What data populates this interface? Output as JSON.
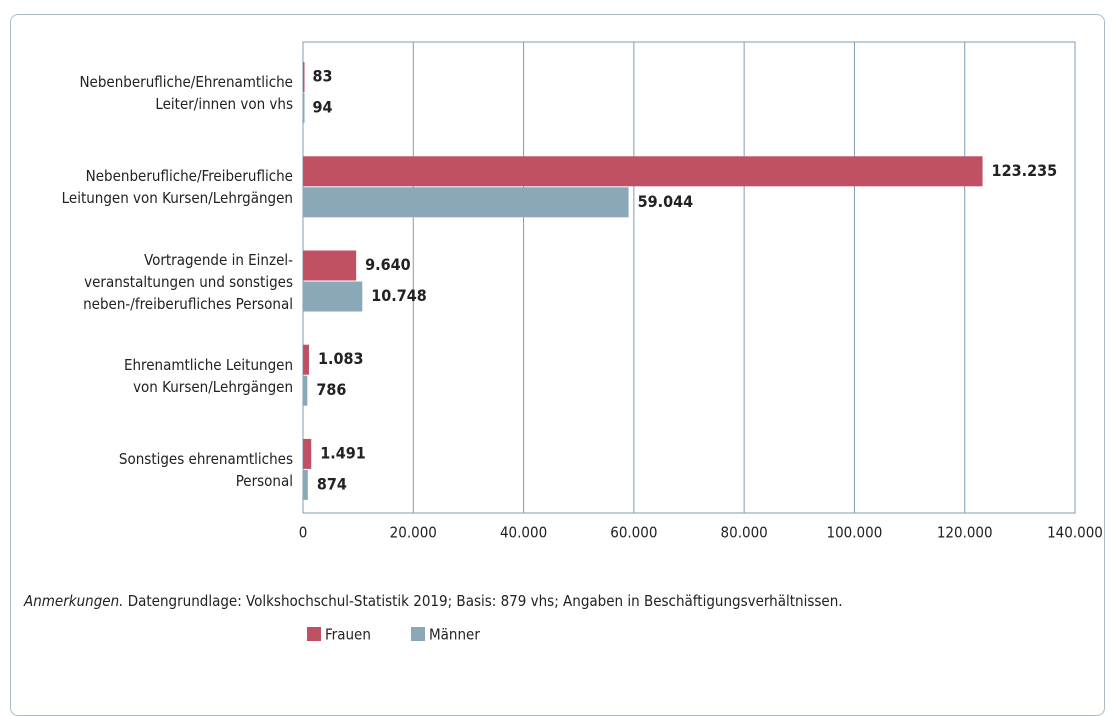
{
  "chart_data": {
    "type": "bar",
    "orientation": "horizontal",
    "categories": [
      "Nebenberufliche/Ehrenamtliche\nLeiter/innen von vhs",
      "Nebenberufliche/Freiberufliche\nLeitungen von Kursen/Lehrgängen",
      "Vortragende in Einzel-\nveranstaltungen und sonstiges\nneben-/freiberufliches Personal",
      "Ehrenamtliche Leitungen\nvon Kursen/Lehrgängen",
      "Sonstiges ehrenamtliches\nPersonal"
    ],
    "series": [
      {
        "name": "Frauen",
        "color": "#c05064",
        "values": [
          83,
          123235,
          9640,
          1083,
          1491
        ],
        "value_labels": [
          "83",
          "123.235",
          "9.640",
          "1.083",
          "1.491"
        ]
      },
      {
        "name": "Männer",
        "color": "#8aa8b8",
        "values": [
          94,
          59044,
          10748,
          786,
          874
        ],
        "value_labels": [
          "94",
          "59.044",
          "10.748",
          "786",
          "874"
        ]
      }
    ],
    "xlim": [
      0,
      140000
    ],
    "xticks": [
      0,
      {
        "value": 20000,
        "label": "20.000"
      },
      {
        "value": 40000,
        "label": "40.000"
      },
      {
        "value": 60000,
        "label": "60.000"
      },
      {
        "value": 80000,
        "label": "80.000"
      },
      {
        "value": 100000,
        "label": "100.000"
      },
      {
        "value": 120000,
        "label": "120.000"
      },
      {
        "value": 140000,
        "label": "140.000"
      }
    ],
    "grid": true,
    "legend": "bottom-left",
    "note_label": "Anmerkungen.",
    "note": "Datengrundlage: Volkshochschul-Statistik 2019; Basis: 879 vhs; Angaben in Beschäftigungsverhältnissen."
  }
}
